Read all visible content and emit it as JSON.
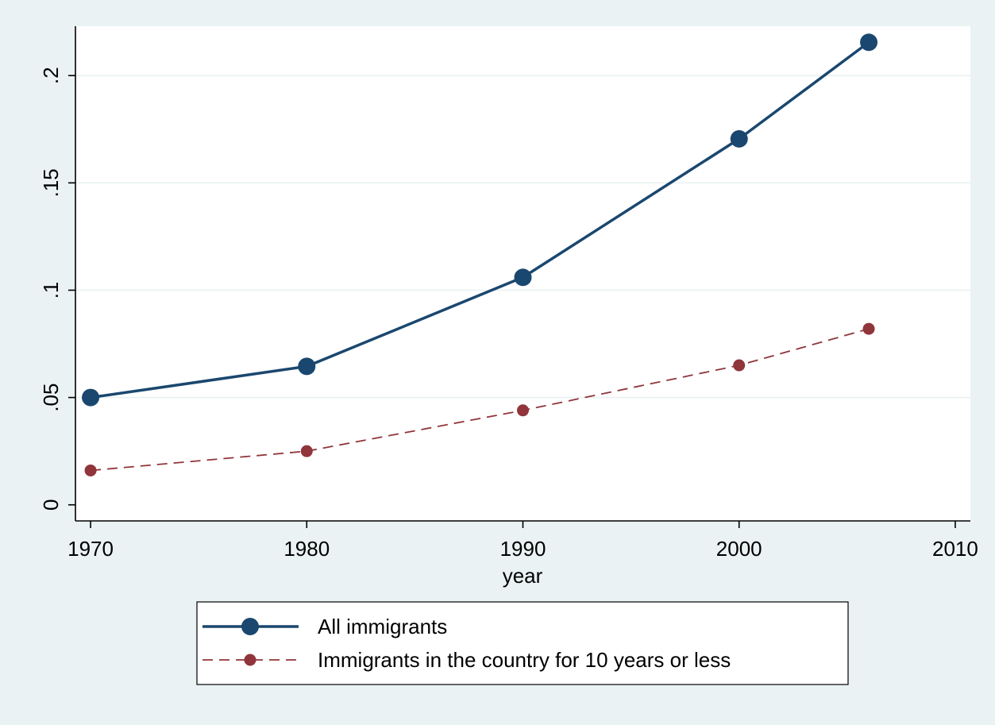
{
  "chart_data": {
    "type": "line",
    "xlabel": "year",
    "ylabel": "",
    "xlim": [
      1969.3,
      2010.7
    ],
    "ylim": [
      -0.0075,
      0.223
    ],
    "xticks": [
      1970,
      1980,
      1990,
      2000,
      2010
    ],
    "xtick_labels": [
      "1970",
      "1980",
      "1990",
      "2000",
      "2010"
    ],
    "yticks": [
      0,
      0.05,
      0.1,
      0.15,
      0.2
    ],
    "ytick_labels": [
      "0",
      ".05",
      ".1",
      ".15",
      ".2"
    ],
    "grid": "horizontal",
    "legend_position": "bottom",
    "x": [
      1970,
      1980,
      1990,
      2000,
      2006
    ],
    "series": [
      {
        "name": "All immigrants",
        "values": [
          0.05,
          0.0645,
          0.106,
          0.1705,
          0.2155
        ],
        "color": "#1a476f",
        "line_style": "solid",
        "marker": "large-circle"
      },
      {
        "name": "Immigrants in the country for 10 years or less",
        "values": [
          0.016,
          0.025,
          0.044,
          0.065,
          0.082
        ],
        "color": "#90353b",
        "line_style": "dashed",
        "marker": "small-circle"
      }
    ]
  },
  "colors": {
    "background": "#eaf2f3",
    "plot_area": "#ffffff",
    "gridline": "#eaf2f3"
  }
}
